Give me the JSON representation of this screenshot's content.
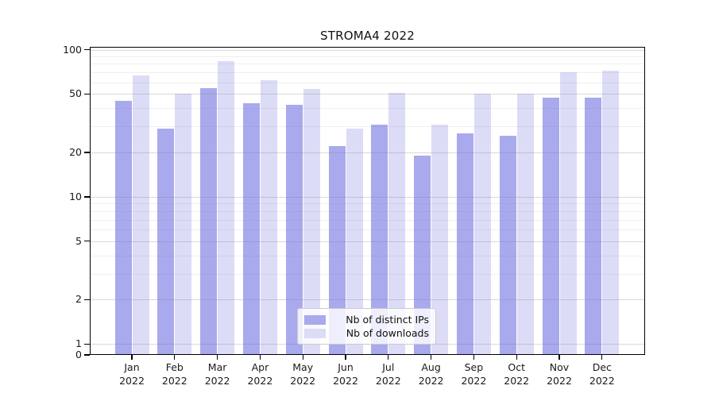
{
  "title": "STROMA4 2022",
  "chart_data": {
    "type": "bar",
    "title": "STROMA4 2022",
    "yscale": "symlog",
    "grid": true,
    "year": "2022",
    "months": [
      "Jan",
      "Feb",
      "Mar",
      "Apr",
      "May",
      "Jun",
      "Jul",
      "Aug",
      "Sep",
      "Oct",
      "Nov",
      "Dec"
    ],
    "series": [
      {
        "name": "Nb of distinct IPs",
        "color": "#a9a9ee",
        "values": [
          45,
          29,
          55,
          43,
          42,
          22,
          31,
          19,
          27,
          26,
          47,
          47
        ]
      },
      {
        "name": "Nb of downloads",
        "color": "#dcdcf7",
        "values": [
          67,
          50,
          84,
          62,
          54,
          29,
          51,
          31,
          50,
          50,
          70,
          72
        ]
      }
    ],
    "y_major_ticks": [
      100,
      50,
      20,
      10,
      5,
      2,
      1,
      0
    ],
    "y_minor_ticks": [
      90,
      80,
      70,
      60,
      40,
      30,
      9,
      8,
      7,
      6,
      4,
      3
    ],
    "ylim": [
      0,
      103
    ],
    "legend_position": "lower center",
    "axis_color": "#000000",
    "grid_major_color": "rgba(130,130,130,0.30)",
    "grid_minor_color": "rgba(130,130,130,0.13)"
  }
}
